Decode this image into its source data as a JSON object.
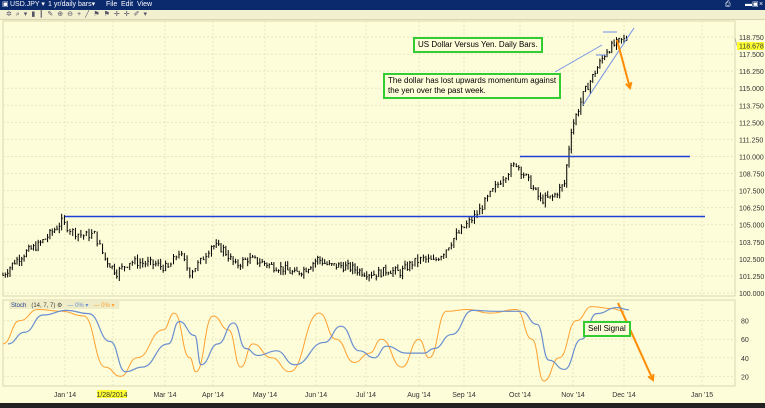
{
  "window": {
    "symbol": "USD.JPY",
    "period": "1 yr/daily bars",
    "menu": [
      "File",
      "Edit",
      "View"
    ]
  },
  "toolbar_icons": [
    "settings-icon",
    "zoom-icon",
    "dropdown-icon",
    "bar-icon",
    "candle-icon",
    "draw-icon",
    "zoom-in-icon",
    "zoom-out-icon",
    "crosshair-icon",
    "line-icon",
    "flag-icon",
    "flag-icon",
    "cross-icon",
    "cross-icon",
    "pen-icon",
    "dropdown-icon"
  ],
  "annotations": {
    "title": "US Dollar Versus Yen. Daily Bars.",
    "comment_line1": "The dollar has lost upwards momentum against",
    "comment_line2": "the yen over the past week.",
    "sell_signal": "Sell Signal"
  },
  "indicator": {
    "name": "Stoch",
    "params": "(14, 7, 7)",
    "legend_k": "0%",
    "legend_d": "0%"
  },
  "colors": {
    "price_bars": "#000000",
    "support_lines": "#1f3fd6",
    "trend_lines": "#6f8fe8",
    "arrows": "#ff8c00",
    "stoch_k": "#ffa030",
    "stoch_d": "#6a8fd0",
    "annotation_border": "#33cc33",
    "last_price_bg": "#ffff33"
  },
  "chart_data": [
    {
      "type": "ohlc",
      "xaxis_ticks": [
        "Jan '14",
        "1/28/2014",
        "Mar '14",
        "Apr '14",
        "May '14",
        "Jun '14",
        "Jul '14",
        "Aug '14",
        "Sep '14",
        "Oct '14",
        "Nov '14",
        "Dec '14",
        "Jan '15"
      ],
      "highlighted_date": "1/28/2014",
      "yaxis_ticks": [
        "118.750",
        "117.500",
        "116.250",
        "115.000",
        "113.750",
        "112.500",
        "111.250",
        "110.000",
        "108.750",
        "107.500",
        "106.250",
        "105.000",
        "103.750",
        "102.500",
        "101.250",
        "100.000"
      ],
      "ylim": [
        100.0,
        118.75
      ],
      "last_price": "118.678",
      "grid": true,
      "horizontal_lines": [
        105.6,
        110.0
      ],
      "closes": [
        [
          "2013-11-25",
          101.3
        ],
        [
          "2013-12-02",
          102.3
        ],
        [
          "2013-12-09",
          103.0
        ],
        [
          "2013-12-16",
          103.5
        ],
        [
          "2013-12-23",
          104.3
        ],
        [
          "2013-12-30",
          105.2
        ],
        [
          "2014-01-06",
          104.5
        ],
        [
          "2014-01-13",
          104.2
        ],
        [
          "2014-01-20",
          104.3
        ],
        [
          "2014-01-27",
          102.5
        ],
        [
          "2014-02-03",
          101.5
        ],
        [
          "2014-02-10",
          102.3
        ],
        [
          "2014-02-17",
          102.2
        ],
        [
          "2014-02-24",
          102.1
        ],
        [
          "2014-03-03",
          101.8
        ],
        [
          "2014-03-10",
          103.0
        ],
        [
          "2014-03-17",
          101.5
        ],
        [
          "2014-03-24",
          102.3
        ],
        [
          "2014-03-31",
          103.5
        ],
        [
          "2014-04-07",
          103.2
        ],
        [
          "2014-04-14",
          102.0
        ],
        [
          "2014-04-21",
          102.5
        ],
        [
          "2014-04-28",
          102.3
        ],
        [
          "2014-05-05",
          102.0
        ],
        [
          "2014-05-12",
          101.8
        ],
        [
          "2014-05-19",
          101.4
        ],
        [
          "2014-05-26",
          101.8
        ],
        [
          "2014-06-02",
          102.5
        ],
        [
          "2014-06-09",
          102.0
        ],
        [
          "2014-06-16",
          102.0
        ],
        [
          "2014-06-23",
          101.8
        ],
        [
          "2014-06-30",
          101.5
        ],
        [
          "2014-07-07",
          101.4
        ],
        [
          "2014-07-14",
          101.7
        ],
        [
          "2014-07-21",
          101.5
        ],
        [
          "2014-07-28",
          102.2
        ],
        [
          "2014-08-04",
          102.5
        ],
        [
          "2014-08-11",
          102.3
        ],
        [
          "2014-08-18",
          103.0
        ],
        [
          "2014-08-25",
          104.0
        ],
        [
          "2014-09-01",
          104.8
        ],
        [
          "2014-09-08",
          105.8
        ],
        [
          "2014-09-15",
          107.2
        ],
        [
          "2014-09-22",
          108.5
        ],
        [
          "2014-09-29",
          109.5
        ],
        [
          "2014-10-06",
          108.2
        ],
        [
          "2014-10-13",
          106.8
        ],
        [
          "2014-10-20",
          107.0
        ],
        [
          "2014-10-27",
          108.0
        ],
        [
          "2014-10-31",
          112.0
        ],
        [
          "2014-11-07",
          114.5
        ],
        [
          "2014-11-14",
          116.2
        ],
        [
          "2014-11-21",
          117.8
        ],
        [
          "2014-11-28",
          118.4
        ],
        [
          "2014-12-03",
          118.7
        ]
      ]
    },
    {
      "type": "line",
      "name": "Stoch",
      "yaxis_ticks": [
        "80",
        "60",
        "40",
        "20"
      ],
      "ylim": [
        0,
        100
      ],
      "series": [
        {
          "values": [
            [
              "2013-11-25",
              55
            ],
            [
              "2013-12-05",
              80
            ],
            [
              "2013-12-16",
              92
            ],
            [
              "2013-12-30",
              90
            ],
            [
              "2014-01-13",
              85
            ],
            [
              "2014-01-27",
              30
            ],
            [
              "2014-02-05",
              20
            ],
            [
              "2014-02-14",
              40
            ],
            [
              "2014-02-28",
              70
            ],
            [
              "2014-03-07",
              88
            ],
            [
              "2014-03-17",
              40
            ],
            [
              "2014-03-21",
              25
            ],
            [
              "2014-04-01",
              85
            ],
            [
              "2014-04-10",
              70
            ],
            [
              "2014-04-17",
              30
            ],
            [
              "2014-04-24",
              55
            ],
            [
              "2014-05-05",
              40
            ],
            [
              "2014-05-16",
              25
            ],
            [
              "2014-06-03",
              88
            ],
            [
              "2014-06-13",
              60
            ],
            [
              "2014-06-24",
              35
            ],
            [
              "2014-07-03",
              45
            ],
            [
              "2014-07-10",
              60
            ],
            [
              "2014-07-22",
              30
            ],
            [
              "2014-08-01",
              60
            ],
            [
              "2014-08-08",
              40
            ],
            [
              "2014-08-20",
              90
            ],
            [
              "2014-09-03",
              92
            ],
            [
              "2014-09-15",
              88
            ],
            [
              "2014-09-29",
              92
            ],
            [
              "2014-10-08",
              60
            ],
            [
              "2014-10-15",
              15
            ],
            [
              "2014-10-24",
              40
            ],
            [
              "2014-11-03",
              80
            ],
            [
              "2014-11-12",
              95
            ],
            [
              "2014-11-24",
              93
            ],
            [
              "2014-12-01",
              90
            ]
          ]
        }
      ]
    }
  ]
}
